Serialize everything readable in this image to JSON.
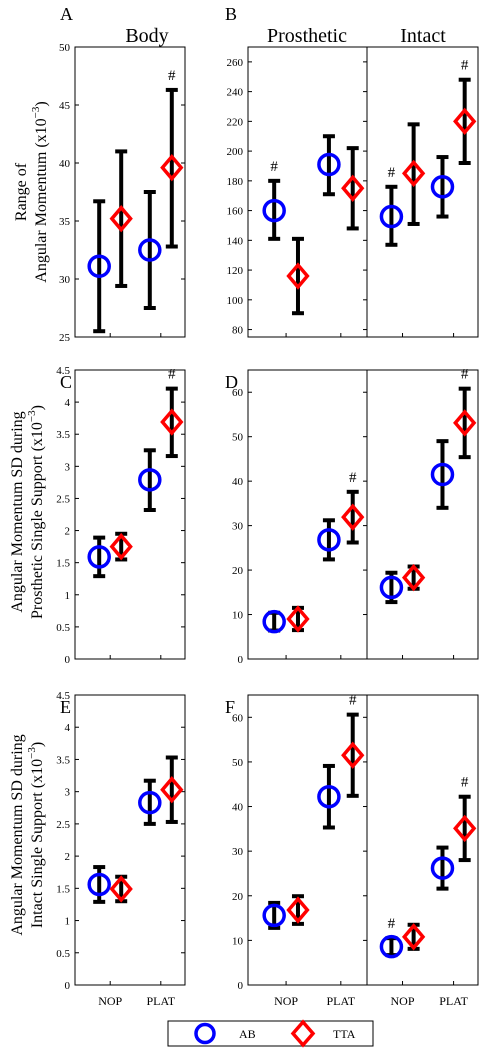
{
  "colors": {
    "AB": "#0000ff",
    "TTA": "#ff0000",
    "errorbar": "#000000"
  },
  "legend": {
    "items": [
      {
        "label": "AB",
        "marker": "circle",
        "color": "#0000ff"
      },
      {
        "label": "TTA",
        "marker": "diamond",
        "color": "#ff0000"
      }
    ]
  },
  "chart_data": [
    {
      "id": "A",
      "letter": "A",
      "title": "Body",
      "type": "scatter",
      "ylabel": [
        "Range of",
        "Angular Momentum (x10",
        "−3",
        ")"
      ],
      "ylim": [
        25,
        50
      ],
      "yticks": [
        25,
        30,
        35,
        40,
        45,
        50
      ],
      "categories": [
        "NOP",
        "PLAT"
      ],
      "show_xticks": false,
      "series": [
        {
          "name": "AB",
          "values": [
            31.1,
            32.5
          ],
          "err_low": [
            25.5,
            27.5
          ],
          "err_high": [
            36.7,
            37.5
          ]
        },
        {
          "name": "TTA",
          "values": [
            35.2,
            39.6
          ],
          "err_low": [
            29.4,
            32.8
          ],
          "err_high": [
            41.0,
            46.3
          ]
        }
      ],
      "annotations": [
        {
          "text": "#",
          "category": "PLAT",
          "series": "TTA"
        }
      ]
    },
    {
      "id": "B",
      "letter": "B",
      "title": "Prosthetic",
      "type": "scatter",
      "ylim": [
        75,
        270
      ],
      "yticks": [
        80,
        100,
        120,
        140,
        160,
        180,
        200,
        220,
        240,
        260
      ],
      "categories": [
        "NOP",
        "PLAT"
      ],
      "show_xticks": false,
      "series": [
        {
          "name": "AB",
          "values": [
            160,
            191
          ],
          "err_low": [
            141,
            171
          ],
          "err_high": [
            180,
            210
          ]
        },
        {
          "name": "TTA",
          "values": [
            116,
            175
          ],
          "err_low": [
            91,
            148
          ],
          "err_high": [
            141,
            202
          ]
        }
      ],
      "annotations": [
        {
          "text": "#",
          "category": "NOP",
          "series": "AB"
        }
      ]
    },
    {
      "id": "B2",
      "letter": "",
      "title": "Intact",
      "type": "scatter",
      "ylim": [
        75,
        270
      ],
      "yticks": [],
      "categories": [
        "NOP",
        "PLAT"
      ],
      "show_xticks": false,
      "series": [
        {
          "name": "AB",
          "values": [
            156,
            176
          ],
          "err_low": [
            137,
            156
          ],
          "err_high": [
            176,
            196
          ]
        },
        {
          "name": "TTA",
          "values": [
            185,
            220
          ],
          "err_low": [
            151,
            192
          ],
          "err_high": [
            218,
            248
          ]
        }
      ],
      "annotations": [
        {
          "text": "#",
          "category": "NOP",
          "series": "AB"
        },
        {
          "text": "#",
          "category": "PLAT",
          "series": "TTA"
        }
      ]
    },
    {
      "id": "C",
      "letter": "C",
      "title": "",
      "type": "scatter",
      "ylabel": [
        "Angular Momentum SD during",
        "Prosthetic Single Support (x10",
        "−3",
        ")"
      ],
      "ylim": [
        0,
        4.5
      ],
      "yticks": [
        0,
        0.5,
        1,
        1.5,
        2,
        2.5,
        3,
        3.5,
        4,
        4.5
      ],
      "categories": [
        "NOP",
        "PLAT"
      ],
      "show_xticks": false,
      "series": [
        {
          "name": "AB",
          "values": [
            1.59,
            2.79
          ],
          "err_low": [
            1.29,
            2.32
          ],
          "err_high": [
            1.89,
            3.25
          ]
        },
        {
          "name": "TTA",
          "values": [
            1.75,
            3.69
          ],
          "err_low": [
            1.55,
            3.16
          ],
          "err_high": [
            1.95,
            4.21
          ]
        }
      ],
      "annotations": [
        {
          "text": "#",
          "category": "PLAT",
          "series": "TTA"
        }
      ]
    },
    {
      "id": "D",
      "letter": "D",
      "title": "",
      "type": "scatter",
      "ylim": [
        0,
        65
      ],
      "yticks": [
        0,
        10,
        20,
        30,
        40,
        50,
        60
      ],
      "categories": [
        "NOP",
        "PLAT"
      ],
      "show_xticks": false,
      "series": [
        {
          "name": "AB",
          "values": [
            8.4,
            26.8
          ],
          "err_low": [
            6.4,
            22.4
          ],
          "err_high": [
            10.4,
            31.2
          ]
        },
        {
          "name": "TTA",
          "values": [
            9.0,
            31.9
          ],
          "err_low": [
            6.5,
            26.2
          ],
          "err_high": [
            11.5,
            37.6
          ]
        }
      ],
      "annotations": [
        {
          "text": "#",
          "category": "PLAT",
          "series": "TTA"
        }
      ]
    },
    {
      "id": "D2",
      "letter": "",
      "title": "",
      "type": "scatter",
      "ylim": [
        0,
        65
      ],
      "yticks": [],
      "categories": [
        "NOP",
        "PLAT"
      ],
      "show_xticks": false,
      "series": [
        {
          "name": "AB",
          "values": [
            16.1,
            41.5
          ],
          "err_low": [
            12.8,
            34.0
          ],
          "err_high": [
            19.4,
            49.0
          ]
        },
        {
          "name": "TTA",
          "values": [
            18.3,
            53.1
          ],
          "err_low": [
            15.8,
            45.4
          ],
          "err_high": [
            20.8,
            60.8
          ]
        }
      ],
      "annotations": [
        {
          "text": "#",
          "category": "PLAT",
          "series": "TTA"
        }
      ]
    },
    {
      "id": "E",
      "letter": "E",
      "title": "",
      "type": "scatter",
      "ylabel": [
        "Angular Momentum SD during",
        "Intact Single Support (x10",
        "−3",
        ")"
      ],
      "ylim": [
        0,
        4.5
      ],
      "yticks": [
        0,
        0.5,
        1,
        1.5,
        2,
        2.5,
        3,
        3.5,
        4,
        4.5
      ],
      "categories": [
        "NOP",
        "PLAT"
      ],
      "show_xticks": true,
      "series": [
        {
          "name": "AB",
          "values": [
            1.56,
            2.83
          ],
          "err_low": [
            1.29,
            2.5
          ],
          "err_high": [
            1.83,
            3.17
          ]
        },
        {
          "name": "TTA",
          "values": [
            1.49,
            3.03
          ],
          "err_low": [
            1.3,
            2.53
          ],
          "err_high": [
            1.68,
            3.53
          ]
        }
      ],
      "annotations": []
    },
    {
      "id": "F",
      "letter": "F",
      "title": "",
      "type": "scatter",
      "ylim": [
        0,
        65
      ],
      "yticks": [
        0,
        10,
        20,
        30,
        40,
        50,
        60
      ],
      "categories": [
        "NOP",
        "PLAT"
      ],
      "show_xticks": true,
      "series": [
        {
          "name": "AB",
          "values": [
            15.6,
            42.2
          ],
          "err_low": [
            12.8,
            35.3
          ],
          "err_high": [
            18.4,
            49.1
          ]
        },
        {
          "name": "TTA",
          "values": [
            16.8,
            51.5
          ],
          "err_low": [
            13.7,
            42.4
          ],
          "err_high": [
            19.9,
            60.6
          ]
        }
      ],
      "annotations": [
        {
          "text": "#",
          "category": "PLAT",
          "series": "TTA"
        }
      ]
    },
    {
      "id": "F2",
      "letter": "",
      "title": "",
      "type": "scatter",
      "ylim": [
        0,
        65
      ],
      "yticks": [],
      "categories": [
        "NOP",
        "PLAT"
      ],
      "show_xticks": true,
      "series": [
        {
          "name": "AB",
          "values": [
            8.6,
            26.2
          ],
          "err_low": [
            6.7,
            21.6
          ],
          "err_high": [
            10.5,
            30.8
          ]
        },
        {
          "name": "TTA",
          "values": [
            10.8,
            35.1
          ],
          "err_low": [
            8.1,
            28.0
          ],
          "err_high": [
            13.5,
            42.2
          ]
        }
      ],
      "annotations": [
        {
          "text": "#",
          "category": "NOP",
          "series": "AB"
        },
        {
          "text": "#",
          "category": "PLAT",
          "series": "TTA"
        }
      ]
    }
  ]
}
